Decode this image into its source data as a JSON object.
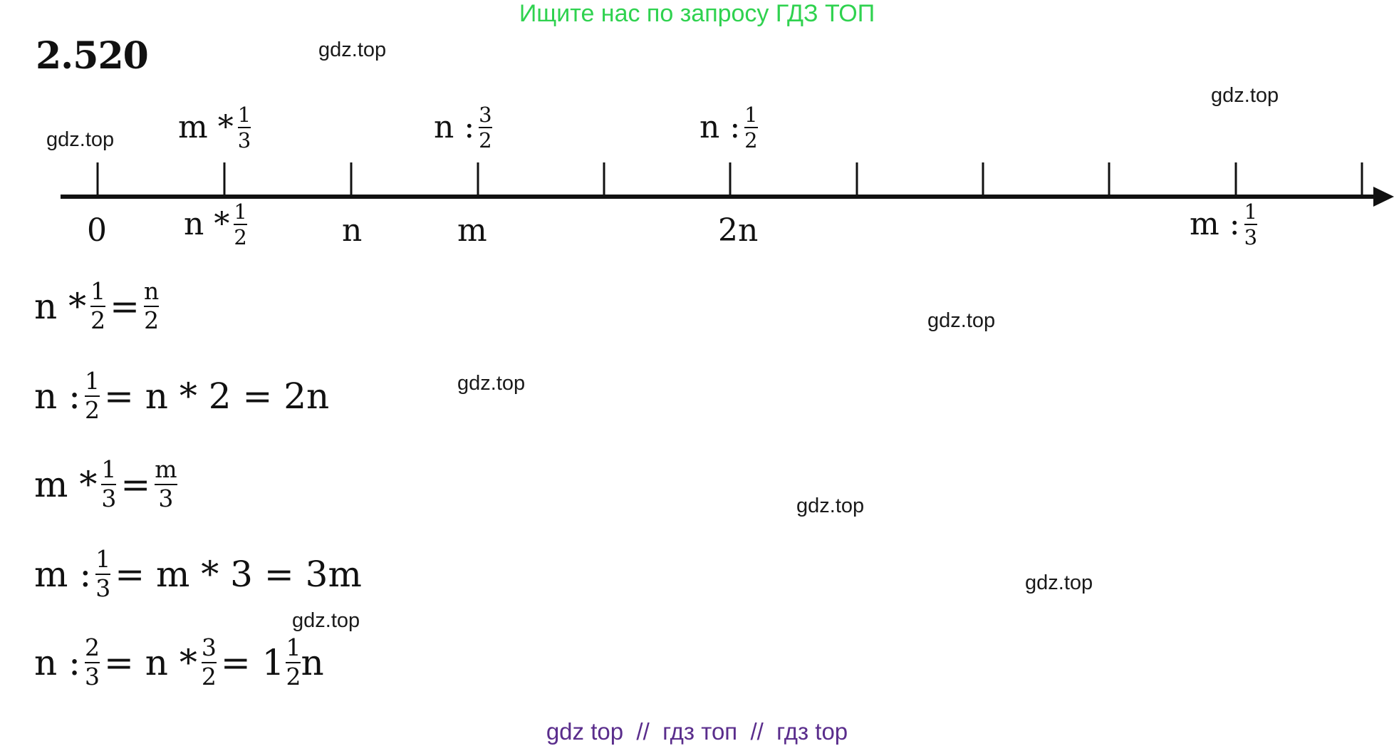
{
  "header": {
    "text": "Ищите нас по запросу ГДЗ ТОП"
  },
  "problem_number": "2.520",
  "watermark": "gdz.top",
  "number_line": {
    "labels_above": [
      {
        "var": "m",
        "op": "*",
        "num": "1",
        "den": "3"
      },
      {
        "var": "n",
        "op": ":",
        "num": "3",
        "den": "2"
      },
      {
        "var": "n",
        "op": ":",
        "num": "1",
        "den": "2"
      }
    ],
    "labels_below": {
      "zero": "0",
      "n_half": {
        "var": "n",
        "op": "*",
        "num": "1",
        "den": "2"
      },
      "n": "n",
      "m": "m",
      "two_n": "2n",
      "m_div_third": {
        "var": "m",
        "op": ":",
        "num": "1",
        "den": "3"
      }
    }
  },
  "equations": [
    {
      "a": "n",
      "op": "*",
      "fn": "1",
      "fd": "2",
      "eq1": "=",
      "rn": "n",
      "rd": "2"
    },
    {
      "a": "n",
      "op": ":",
      "fn": "1",
      "fd": "2",
      "mid": "= n * 2 = 2n"
    },
    {
      "a": "m",
      "op": "*",
      "fn": "1",
      "fd": "3",
      "eq1": "=",
      "rn": "m",
      "rd": "3"
    },
    {
      "a": "m",
      "op": ":",
      "fn": "1",
      "fd": "3",
      "mid": "= m * 3 = 3m"
    },
    {
      "a": "n",
      "op": ":",
      "fn": "2",
      "fd": "3",
      "mid": "= n *",
      "f2n": "3",
      "f2d": "2",
      "mid2": "= 1",
      "f3n": "1",
      "f3d": "2",
      "tail": "n"
    }
  ],
  "footer": {
    "text": "gdz top  //  гдз топ  //  гдз top"
  }
}
